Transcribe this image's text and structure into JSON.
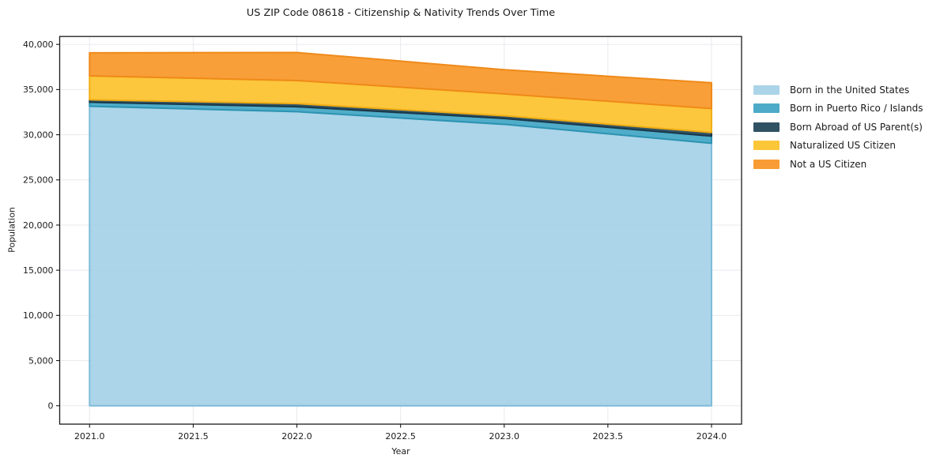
{
  "chart_data": {
    "type": "area",
    "stacked": true,
    "title": "US ZIP Code 08618 - Citizenship & Nativity Trends Over Time",
    "xlabel": "Year",
    "ylabel": "Population",
    "x": [
      2021,
      2022,
      2023,
      2024
    ],
    "x_ticks": [
      2021.0,
      2021.5,
      2022.0,
      2022.5,
      2023.0,
      2023.5,
      2024.0
    ],
    "x_tick_labels": [
      "2021.0",
      "2021.5",
      "2022.0",
      "2022.5",
      "2023.0",
      "2023.5",
      "2024.0"
    ],
    "xlim": [
      2020.86,
      2024.14
    ],
    "y_ticks": [
      0,
      5000,
      10000,
      15000,
      20000,
      25000,
      30000,
      35000,
      40000
    ],
    "y_tick_labels": [
      "0",
      "5,000",
      "10,000",
      "15,000",
      "20,000",
      "25,000",
      "30,000",
      "35,000",
      "40,000"
    ],
    "ylim": [
      0,
      40000
    ],
    "grid": true,
    "grid_color": "#e9e9f0",
    "axis_color": "#1a1a1a",
    "legend_position": "right",
    "series": [
      {
        "id": "born-us",
        "name": "Born in the United States",
        "color": "#a6d2e7",
        "edge": "#7fbcd9",
        "values": [
          33150,
          32550,
          31150,
          29050
        ]
      },
      {
        "id": "born-pr",
        "name": "Born in Puerto Rico / Islands",
        "color": "#43a7c5",
        "edge": "#2d93b2",
        "values": [
          450,
          550,
          650,
          800
        ]
      },
      {
        "id": "born-abroad",
        "name": "Born Abroad of US Parent(s)",
        "color": "#25495b",
        "edge": "#1b394a",
        "values": [
          270,
          350,
          300,
          400
        ]
      },
      {
        "id": "naturalized",
        "name": "Naturalized US Citizen",
        "color": "#fcc32e",
        "edge": "#f2ae14",
        "values": [
          2650,
          2550,
          2425,
          2650
        ]
      },
      {
        "id": "not-citizen",
        "name": "Not a US Citizen",
        "color": "#f8982a",
        "edge": "#ef8a19",
        "values": [
          2550,
          3100,
          2675,
          2850
        ]
      }
    ]
  }
}
